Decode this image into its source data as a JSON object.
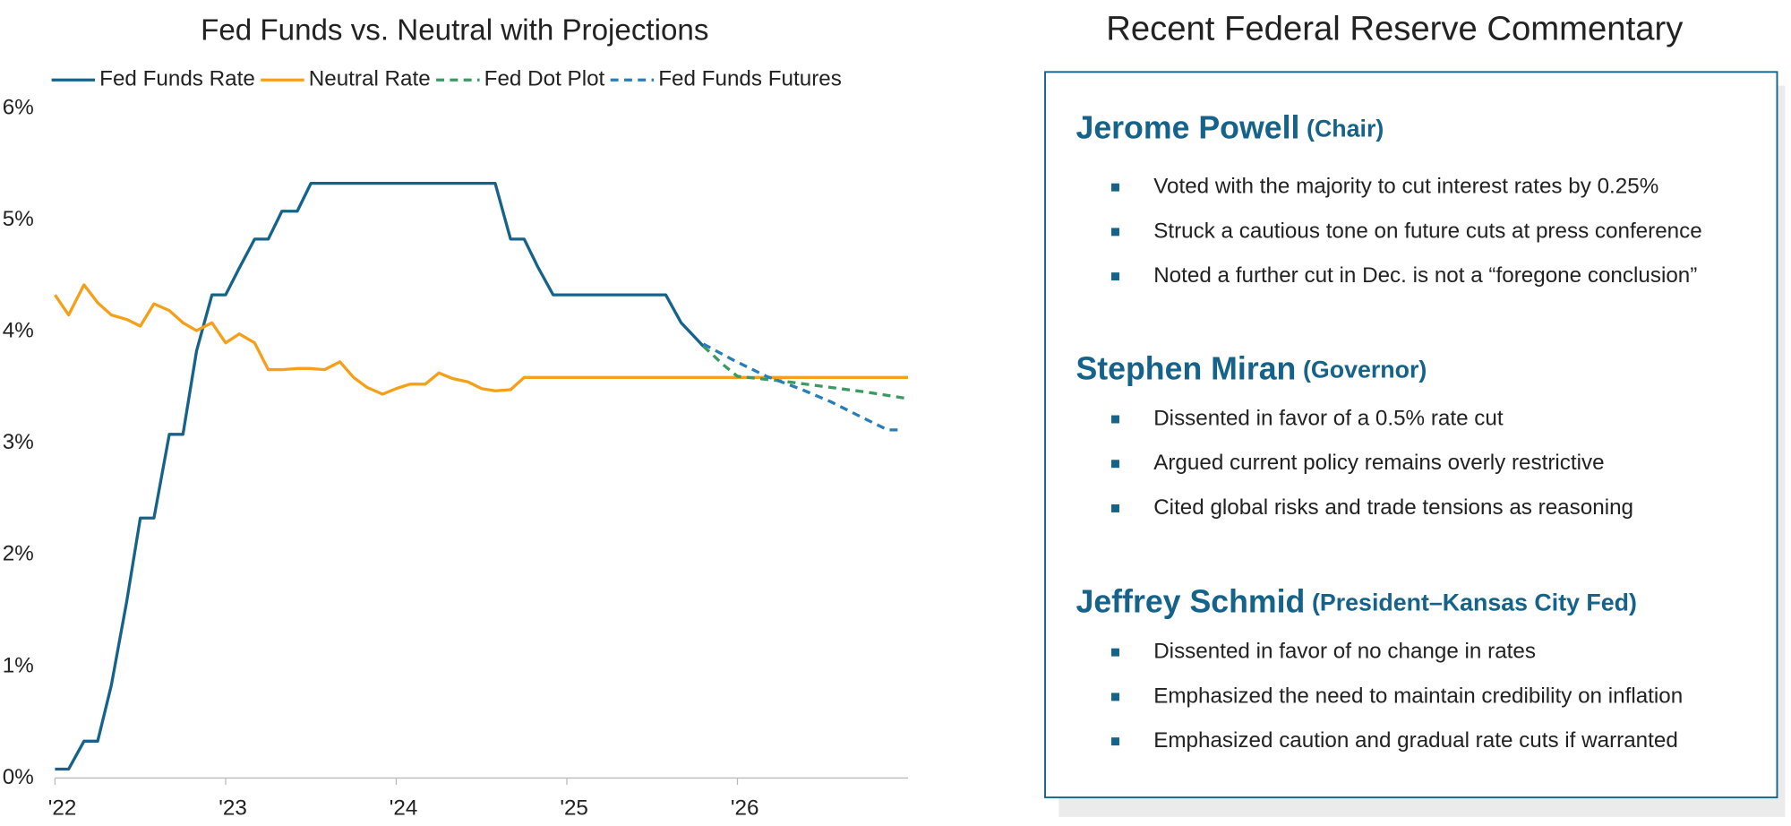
{
  "chart_data": {
    "type": "line",
    "title": "Fed Funds vs. Neutral with Projections",
    "legend": "top-left",
    "grid": false,
    "xlim": [
      2022,
      2027
    ],
    "xticks": [
      {
        "value": 2022,
        "label": "'22"
      },
      {
        "value": 2023,
        "label": "'23"
      },
      {
        "value": 2024,
        "label": "'24"
      },
      {
        "value": 2025,
        "label": "'25"
      },
      {
        "value": 2026,
        "label": "'26"
      }
    ],
    "ylim": [
      0,
      6
    ],
    "yticks": [
      {
        "value": 0,
        "label": "0%"
      },
      {
        "value": 1,
        "label": "1%"
      },
      {
        "value": 2,
        "label": "2%"
      },
      {
        "value": 3,
        "label": "3%"
      },
      {
        "value": 4,
        "label": "4%"
      },
      {
        "value": 5,
        "label": "5%"
      },
      {
        "value": 6,
        "label": "6%"
      }
    ],
    "series": [
      {
        "name": "Fed Funds Rate",
        "color": "#15638a",
        "style": "solid",
        "x": [
          2022,
          2022.08,
          2022.17,
          2022.25,
          2022.33,
          2022.42,
          2022.5,
          2022.58,
          2022.67,
          2022.75,
          2022.83,
          2022.92,
          2023,
          2023.08,
          2023.17,
          2023.25,
          2023.33,
          2023.42,
          2023.5,
          2023.58,
          2023.67,
          2023.75,
          2023.83,
          2023.92,
          2024,
          2024.08,
          2024.17,
          2024.25,
          2024.33,
          2024.42,
          2024.5,
          2024.58,
          2024.67,
          2024.75,
          2024.83,
          2024.92,
          2025,
          2025.08,
          2025.17,
          2025.25,
          2025.33,
          2025.42,
          2025.5,
          2025.58,
          2025.67,
          2025.8
        ],
        "values": [
          0.08,
          0.08,
          0.33,
          0.33,
          0.83,
          1.58,
          2.33,
          2.33,
          3.08,
          3.08,
          3.83,
          4.33,
          4.33,
          4.57,
          4.83,
          4.83,
          5.08,
          5.08,
          5.33,
          5.33,
          5.33,
          5.33,
          5.33,
          5.33,
          5.33,
          5.33,
          5.33,
          5.33,
          5.33,
          5.33,
          5.33,
          5.33,
          4.83,
          4.83,
          4.58,
          4.33,
          4.33,
          4.33,
          4.33,
          4.33,
          4.33,
          4.33,
          4.33,
          4.33,
          4.08,
          3.87
        ]
      },
      {
        "name": "Neutral Rate",
        "color": "#f5a01a",
        "style": "solid",
        "x": [
          2022,
          2022.08,
          2022.17,
          2022.25,
          2022.33,
          2022.42,
          2022.5,
          2022.58,
          2022.67,
          2022.75,
          2022.83,
          2022.92,
          2023,
          2023.08,
          2023.17,
          2023.25,
          2023.33,
          2023.42,
          2023.5,
          2023.58,
          2023.67,
          2023.75,
          2023.83,
          2023.92,
          2024,
          2024.08,
          2024.17,
          2024.25,
          2024.33,
          2024.42,
          2024.5,
          2024.58,
          2024.67,
          2024.75,
          2027
        ],
        "values": [
          4.33,
          4.15,
          4.42,
          4.26,
          4.15,
          4.11,
          4.05,
          4.25,
          4.19,
          4.08,
          4.01,
          4.08,
          3.9,
          3.98,
          3.9,
          3.66,
          3.66,
          3.67,
          3.67,
          3.66,
          3.73,
          3.59,
          3.5,
          3.44,
          3.49,
          3.53,
          3.53,
          3.63,
          3.58,
          3.55,
          3.49,
          3.47,
          3.48,
          3.59,
          3.59
        ]
      },
      {
        "name": "Fed Dot Plot",
        "color": "#3a9a62",
        "style": "dashed",
        "x": [
          2025.8,
          2025.92,
          2026,
          2026.25,
          2026.5,
          2026.75,
          2027
        ],
        "values": [
          3.87,
          3.7,
          3.6,
          3.56,
          3.51,
          3.46,
          3.4
        ]
      },
      {
        "name": "Fed Funds Futures",
        "color": "#2a7db6",
        "style": "dashed",
        "x": [
          2025.8,
          2025.97,
          2026.17,
          2026.38,
          2026.55,
          2026.72,
          2026.88,
          2026.97
        ],
        "values": [
          3.89,
          3.75,
          3.6,
          3.48,
          3.37,
          3.24,
          3.12,
          3.12
        ]
      }
    ]
  },
  "commentary": {
    "title": "Recent Federal Reserve Commentary",
    "members": [
      {
        "name": "Jerome Powell",
        "role": "(Chair)",
        "points": [
          "Voted with the majority to cut interest rates by 0.25%",
          "Struck a cautious tone on future cuts at press conference",
          "Noted a further cut in Dec. is not a “foregone conclusion”"
        ]
      },
      {
        "name": "Stephen Miran",
        "role": "(Governor)",
        "points": [
          "Dissented in favor of a 0.5% rate cut",
          "Argued current policy remains overly restrictive",
          "Cited global risks and trade tensions as reasoning"
        ]
      },
      {
        "name": "Jeffrey Schmid",
        "role": "(President–Kansas City Fed)",
        "points": [
          "Dissented in favor of no change in rates",
          "Emphasized the need to maintain credibility on inflation",
          "Emphasized caution and gradual rate cuts if warranted"
        ]
      }
    ]
  }
}
